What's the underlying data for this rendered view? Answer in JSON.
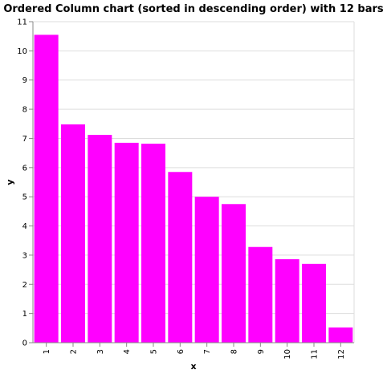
{
  "chart_data": {
    "type": "bar",
    "title": "Ordered Column chart (sorted in descending order) with 12 bars",
    "xlabel": "x",
    "ylabel": "y",
    "categories": [
      "1",
      "2",
      "3",
      "4",
      "5",
      "6",
      "7",
      "8",
      "9",
      "10",
      "11",
      "12"
    ],
    "values": [
      10.55,
      7.48,
      7.12,
      6.85,
      6.82,
      5.85,
      5.0,
      4.75,
      3.28,
      2.86,
      2.7,
      0.52
    ],
    "ylim": [
      0,
      11
    ],
    "yticks": [
      0,
      1,
      2,
      3,
      4,
      5,
      6,
      7,
      8,
      9,
      10,
      11
    ],
    "grid": true,
    "bar_color": "#ff00ff"
  }
}
